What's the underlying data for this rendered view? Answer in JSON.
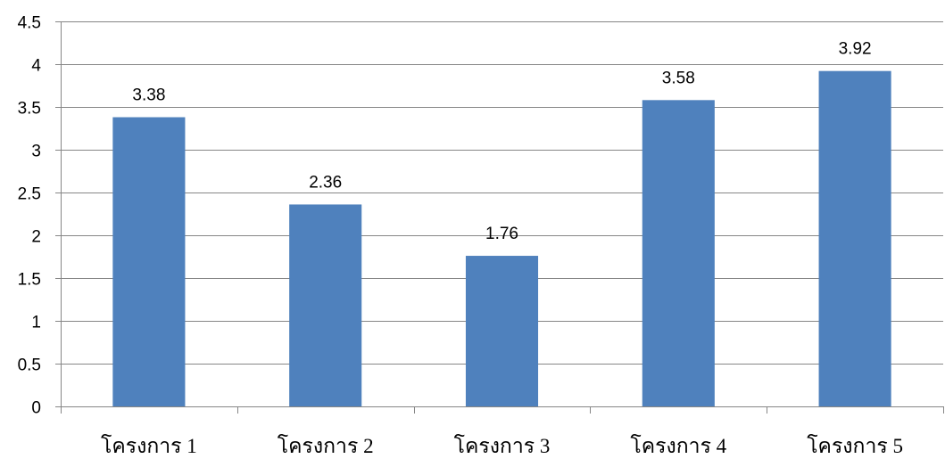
{
  "chart_data": {
    "type": "bar",
    "categories": [
      "โครงการ 1",
      "โครงการ 2",
      "โครงการ 3",
      "โครงการ 4",
      "โครงการ 5"
    ],
    "values": [
      3.38,
      2.36,
      1.76,
      3.58,
      3.92
    ],
    "data_labels": [
      "3.38",
      "2.36",
      "1.76",
      "3.58",
      "3.92"
    ],
    "ylim": [
      0,
      4.5
    ],
    "y_ticks": [
      "0",
      "0.5",
      "1",
      "1.5",
      "2",
      "2.5",
      "3",
      "3.5",
      "4",
      "4.5"
    ],
    "title": "",
    "xlabel": "",
    "ylabel": "",
    "grid": true,
    "legend": "none",
    "bar_color": "#4f81bd",
    "gridline_color": "#868686"
  }
}
